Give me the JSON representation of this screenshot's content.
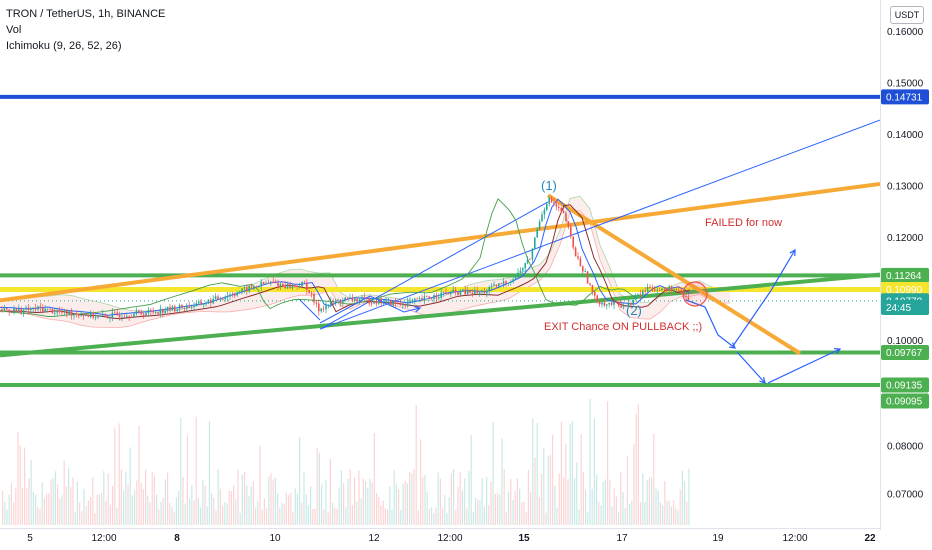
{
  "header": {
    "title": "TRON / TetherUS, 1h, BINANCE",
    "indicator_1": "Vol",
    "indicator_2": "Ichimoku (9, 26, 52, 26)"
  },
  "currency": "USDT",
  "chart_data": {
    "type": "candlestick",
    "title": "TRON / TetherUS, 1h, BINANCE",
    "ylim": [
      0.0625,
      0.1664
    ],
    "price_ticks": [
      "0.16000",
      "0.15000",
      "0.14000",
      "0.13000",
      "0.12000",
      "0.11000",
      "0.10000",
      "0.08000",
      "0.07000"
    ],
    "x_ticks": [
      "5",
      "12:00",
      "8",
      "10",
      "12",
      "12:00",
      "15",
      "17",
      "19",
      "12:00",
      "22"
    ],
    "bold_x_ticks": [
      "8",
      "15",
      "22"
    ],
    "horizontal_lines": [
      {
        "price": 0.14731,
        "label": "0.14731",
        "color": "#1e4fd6"
      },
      {
        "price": 0.11264,
        "label": "0.11264",
        "color": "#4caf50"
      },
      {
        "price": 0.1099,
        "label": "0.10990",
        "color": "#f5e52c"
      },
      {
        "price": 0.09767,
        "label": "0.09767",
        "color": "#4caf50"
      },
      {
        "price": 0.09135,
        "label": "0.09135",
        "color": "#4caf50"
      }
    ],
    "price_labels": [
      {
        "price": 0.14731,
        "label": "0.14731",
        "color": "#1e4fd6"
      },
      {
        "price": 0.11264,
        "label": "0.11264",
        "color": "#4caf50"
      },
      {
        "price": 0.1099,
        "label": "0.10990",
        "color": "#f5e52c",
        "dark_text": true
      },
      {
        "price": 0.1077,
        "label": "0.10770",
        "color": "#26a69a"
      },
      {
        "price": 0.1064,
        "label": "24:45",
        "color": "#26a69a"
      },
      {
        "price": 0.09767,
        "label": "0.09767",
        "color": "#4caf50"
      },
      {
        "price": 0.09135,
        "label": "0.09135",
        "color": "#4caf50"
      },
      {
        "price": 0.09095,
        "label": "0.09095",
        "color": "#4caf50"
      }
    ],
    "trend_lines": [
      {
        "name": "orange-upper-channel",
        "from": [
          "start",
          0.1078
        ],
        "to": [
          "end",
          0.1304
        ],
        "color": "#f7a935"
      },
      {
        "name": "green-support",
        "from": [
          "start",
          0.0971
        ],
        "to": [
          "end",
          0.1128
        ],
        "color": "#4caf50"
      },
      {
        "name": "orange-descending",
        "from": [
          "15",
          0.1282
        ],
        "to": [
          "19+",
          0.0975
        ],
        "color": "#f7a935"
      },
      {
        "name": "blue-rising-channel",
        "from": [
          "12",
          0.1022
        ],
        "to": [
          "end",
          0.1428
        ],
        "color": "#2962ff"
      }
    ],
    "annotations": [
      {
        "text": "(1)",
        "type": "wave"
      },
      {
        "text": "(2)",
        "type": "wave"
      },
      {
        "text": "FAILED  for now",
        "type": "note"
      },
      {
        "text": "EXIT Chance ON PULLBACK ;;)",
        "type": "note"
      }
    ],
    "last_price": 0.1077,
    "series": [
      {
        "name": "Vol"
      },
      {
        "name": "Ichimoku (9, 26, 52, 26)"
      }
    ]
  }
}
